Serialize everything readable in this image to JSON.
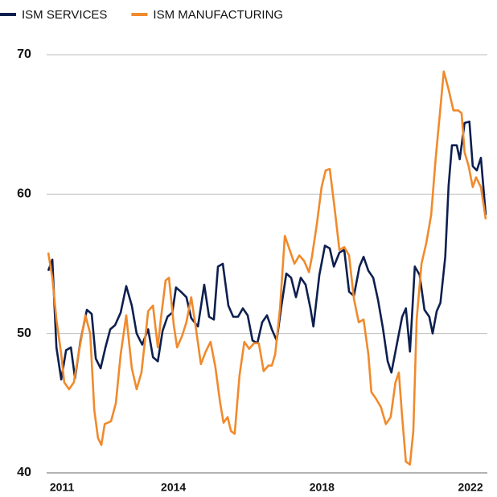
{
  "chart_data": {
    "type": "line",
    "xlim": [
      2010.63,
      2022.41
    ],
    "xticks": [
      2011,
      2014,
      2018,
      2022
    ],
    "ylim": [
      40,
      70
    ],
    "yticks": [
      40,
      50,
      60,
      70
    ],
    "grid": true,
    "legend": "top",
    "series": [
      {
        "name": "ISM SERVICES",
        "color": "#0d1f4f",
        "x": [
          2010.63,
          2010.74,
          2010.85,
          2010.98,
          2011.11,
          2011.24,
          2011.35,
          2011.5,
          2011.67,
          2011.8,
          2011.91,
          2012.04,
          2012.17,
          2012.3,
          2012.43,
          2012.58,
          2012.73,
          2012.88,
          2013.01,
          2013.16,
          2013.32,
          2013.45,
          2013.58,
          2013.71,
          2013.84,
          2013.97,
          2014.07,
          2014.2,
          2014.35,
          2014.48,
          2014.66,
          2014.83,
          2014.96,
          2015.09,
          2015.2,
          2015.33,
          2015.48,
          2015.61,
          2015.74,
          2015.87,
          2016.0,
          2016.13,
          2016.26,
          2016.39,
          2016.52,
          2016.65,
          2016.78,
          2016.91,
          2017.04,
          2017.17,
          2017.3,
          2017.43,
          2017.56,
          2017.69,
          2017.77,
          2017.93,
          2018.08,
          2018.21,
          2018.32,
          2018.47,
          2018.6,
          2018.73,
          2018.86,
          2019.01,
          2019.12,
          2019.25,
          2019.38,
          2019.51,
          2019.64,
          2019.77,
          2019.87,
          2020.0,
          2020.16,
          2020.26,
          2020.37,
          2020.5,
          2020.63,
          2020.76,
          2020.89,
          2020.98,
          2021.09,
          2021.19,
          2021.32,
          2021.41,
          2021.5,
          2021.63,
          2021.71,
          2021.84,
          2021.97,
          2022.06,
          2022.17,
          2022.28,
          2022.41
        ],
        "values": [
          54.5,
          55.3,
          49,
          46.7,
          48.8,
          49,
          46.8,
          49.5,
          51.7,
          51.4,
          48.2,
          47.5,
          49,
          50.3,
          50.6,
          51.5,
          53.4,
          52,
          50,
          49.2,
          50.3,
          48.3,
          48,
          50.2,
          51.2,
          51.5,
          53.3,
          53,
          52.6,
          51.1,
          50.5,
          53.5,
          51.2,
          51,
          54.8,
          55,
          52,
          51.2,
          51.2,
          51.8,
          51.3,
          49.5,
          49.3,
          50.8,
          51.3,
          50.3,
          49.5,
          52,
          54.3,
          54,
          52.6,
          54,
          53.5,
          51.8,
          50.5,
          54.2,
          56.3,
          56.1,
          54.8,
          55.8,
          56,
          53,
          52.7,
          54.8,
          55.5,
          54.5,
          54,
          52.4,
          50.4,
          48,
          47.2,
          49,
          51.2,
          51.8,
          48.7,
          54.8,
          54.2,
          51.7,
          51.2,
          50,
          51.6,
          52.2,
          55.5,
          60.6,
          63.5,
          63.5,
          62.5,
          65.1,
          65.2,
          62,
          61.7,
          62.6,
          58.5
        ]
      },
      {
        "name": "ISM MANUFACTURING",
        "color": "#f08a2c",
        "x": [
          2010.63,
          2010.74,
          2010.85,
          2010.98,
          2011.06,
          2011.19,
          2011.32,
          2011.45,
          2011.63,
          2011.76,
          2011.87,
          2011.97,
          2012.06,
          2012.15,
          2012.32,
          2012.45,
          2012.58,
          2012.73,
          2012.88,
          2013.01,
          2013.14,
          2013.32,
          2013.45,
          2013.58,
          2013.66,
          2013.79,
          2013.88,
          2014.01,
          2014.1,
          2014.23,
          2014.35,
          2014.48,
          2014.61,
          2014.74,
          2014.87,
          2015.0,
          2015.13,
          2015.26,
          2015.35,
          2015.46,
          2015.55,
          2015.65,
          2015.78,
          2015.91,
          2016.04,
          2016.17,
          2016.3,
          2016.43,
          2016.56,
          2016.65,
          2016.74,
          2016.87,
          2017.0,
          2017.13,
          2017.26,
          2017.39,
          2017.52,
          2017.65,
          2017.73,
          2017.86,
          2017.99,
          2018.1,
          2018.21,
          2018.34,
          2018.47,
          2018.6,
          2018.73,
          2018.86,
          2018.99,
          2019.12,
          2019.25,
          2019.33,
          2019.46,
          2019.59,
          2019.72,
          2019.85,
          2019.98,
          2020.07,
          2020.16,
          2020.26,
          2020.37,
          2020.46,
          2020.55,
          2020.68,
          2020.81,
          2020.94,
          2021.06,
          2021.19,
          2021.28,
          2021.41,
          2021.54,
          2021.67,
          2021.76,
          2021.84,
          2021.95,
          2022.06,
          2022.15,
          2022.28,
          2022.41
        ],
        "values": [
          55.8,
          54,
          51,
          48.5,
          46.5,
          46,
          46.5,
          48.6,
          51.3,
          50,
          44.5,
          42.5,
          42,
          43.5,
          43.7,
          45,
          48.5,
          51.3,
          47.5,
          46,
          47.2,
          51.6,
          52,
          49,
          51,
          53.8,
          54,
          50.6,
          49,
          49.8,
          50.8,
          52.6,
          50.3,
          47.8,
          48.7,
          49.4,
          47.6,
          45,
          43.6,
          44,
          43,
          42.8,
          47,
          49.4,
          48.9,
          49.3,
          49.3,
          47.3,
          47.7,
          47.7,
          48.5,
          51.8,
          57,
          56,
          55,
          55.6,
          55.2,
          54.4,
          55.5,
          57.8,
          60.5,
          61.7,
          61.8,
          59,
          56,
          56.2,
          55.6,
          52.5,
          50.8,
          51,
          48.5,
          45.8,
          45.3,
          44.7,
          43.5,
          44,
          46.5,
          47.2,
          44,
          40.8,
          40.6,
          43,
          51,
          55,
          56.5,
          58.5,
          62.5,
          66.2,
          68.8,
          67.5,
          66,
          66,
          65.8,
          63,
          62,
          60.5,
          61.2,
          60.5,
          58.2
        ]
      }
    ]
  }
}
